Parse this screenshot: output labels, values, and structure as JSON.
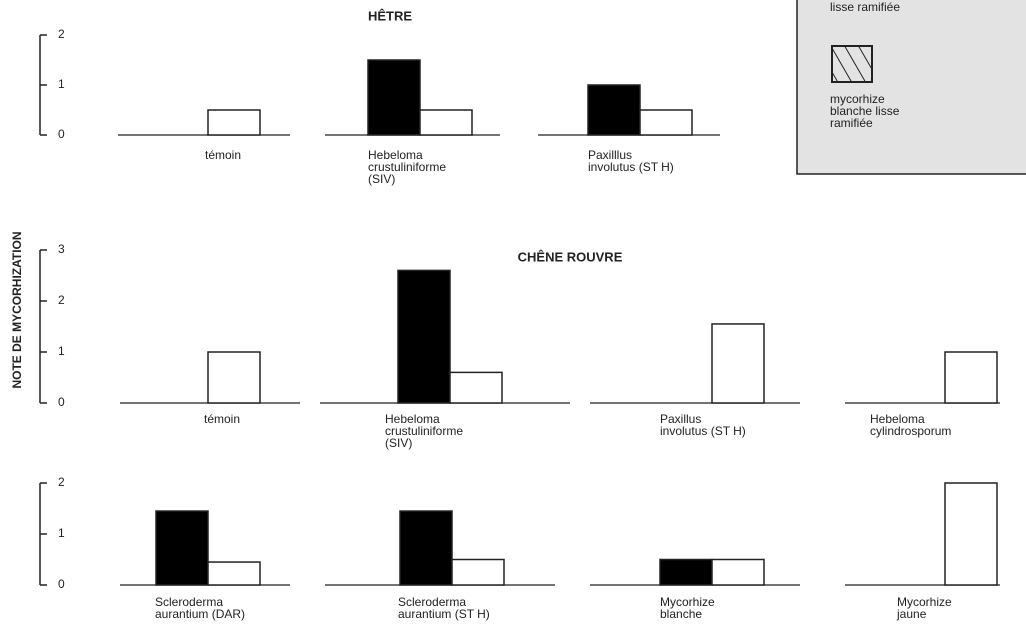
{
  "y_label": "NOTE DE MYCORHIZATION",
  "chart_data": [
    {
      "type": "bar",
      "title": "HÊTRE",
      "categories": [
        [
          "témoin"
        ],
        [
          "Hebeloma",
          "crustuliniforme",
          "(SIV)"
        ],
        [
          "Paxilllus",
          "involutus (ST H)"
        ]
      ],
      "series": [
        {
          "name": [
            "lisse ramifiée"
          ],
          "color": "#000000",
          "values": [
            0,
            1.5,
            1.0
          ]
        },
        {
          "name": [
            "mycorhize",
            "blanche lisse",
            "ramifiée"
          ],
          "color": "#ffffff",
          "values": [
            0.5,
            0.5,
            0.5
          ]
        }
      ],
      "ylim": [
        0,
        2
      ],
      "yticks": [
        0,
        1,
        2
      ]
    },
    {
      "type": "bar",
      "title": "CHÊNE ROUVRE",
      "categories": [
        [
          "témoin"
        ],
        [
          "Hebeloma",
          "crustuliniforme",
          "(SIV)"
        ],
        [
          "Paxillus",
          "involutus (ST H)"
        ],
        [
          "Hebeloma",
          "cylindrosporum"
        ]
      ],
      "series": [
        {
          "color": "#000000",
          "values": [
            0,
            2.6,
            0,
            0
          ]
        },
        {
          "color": "#ffffff",
          "values": [
            1.0,
            0.6,
            1.55,
            1.0
          ]
        }
      ],
      "ylim": [
        0,
        3
      ],
      "yticks": [
        0,
        1,
        2,
        3
      ]
    },
    {
      "type": "bar",
      "categories": [
        [
          "Scleroderma",
          "aurantium (DAR)"
        ],
        [
          "Scleroderma",
          "aurantium (ST H)"
        ],
        [
          "Mycorhize",
          "blanche"
        ],
        [
          "Mycorhize",
          "jaune"
        ]
      ],
      "series": [
        {
          "color": "#000000",
          "values": [
            1.45,
            1.45,
            0.5,
            0
          ]
        },
        {
          "color": "#ffffff",
          "values": [
            0.45,
            0.5,
            0.5,
            2.0
          ]
        }
      ],
      "ylim": [
        0,
        2
      ],
      "yticks": [
        0,
        1,
        2
      ]
    }
  ]
}
